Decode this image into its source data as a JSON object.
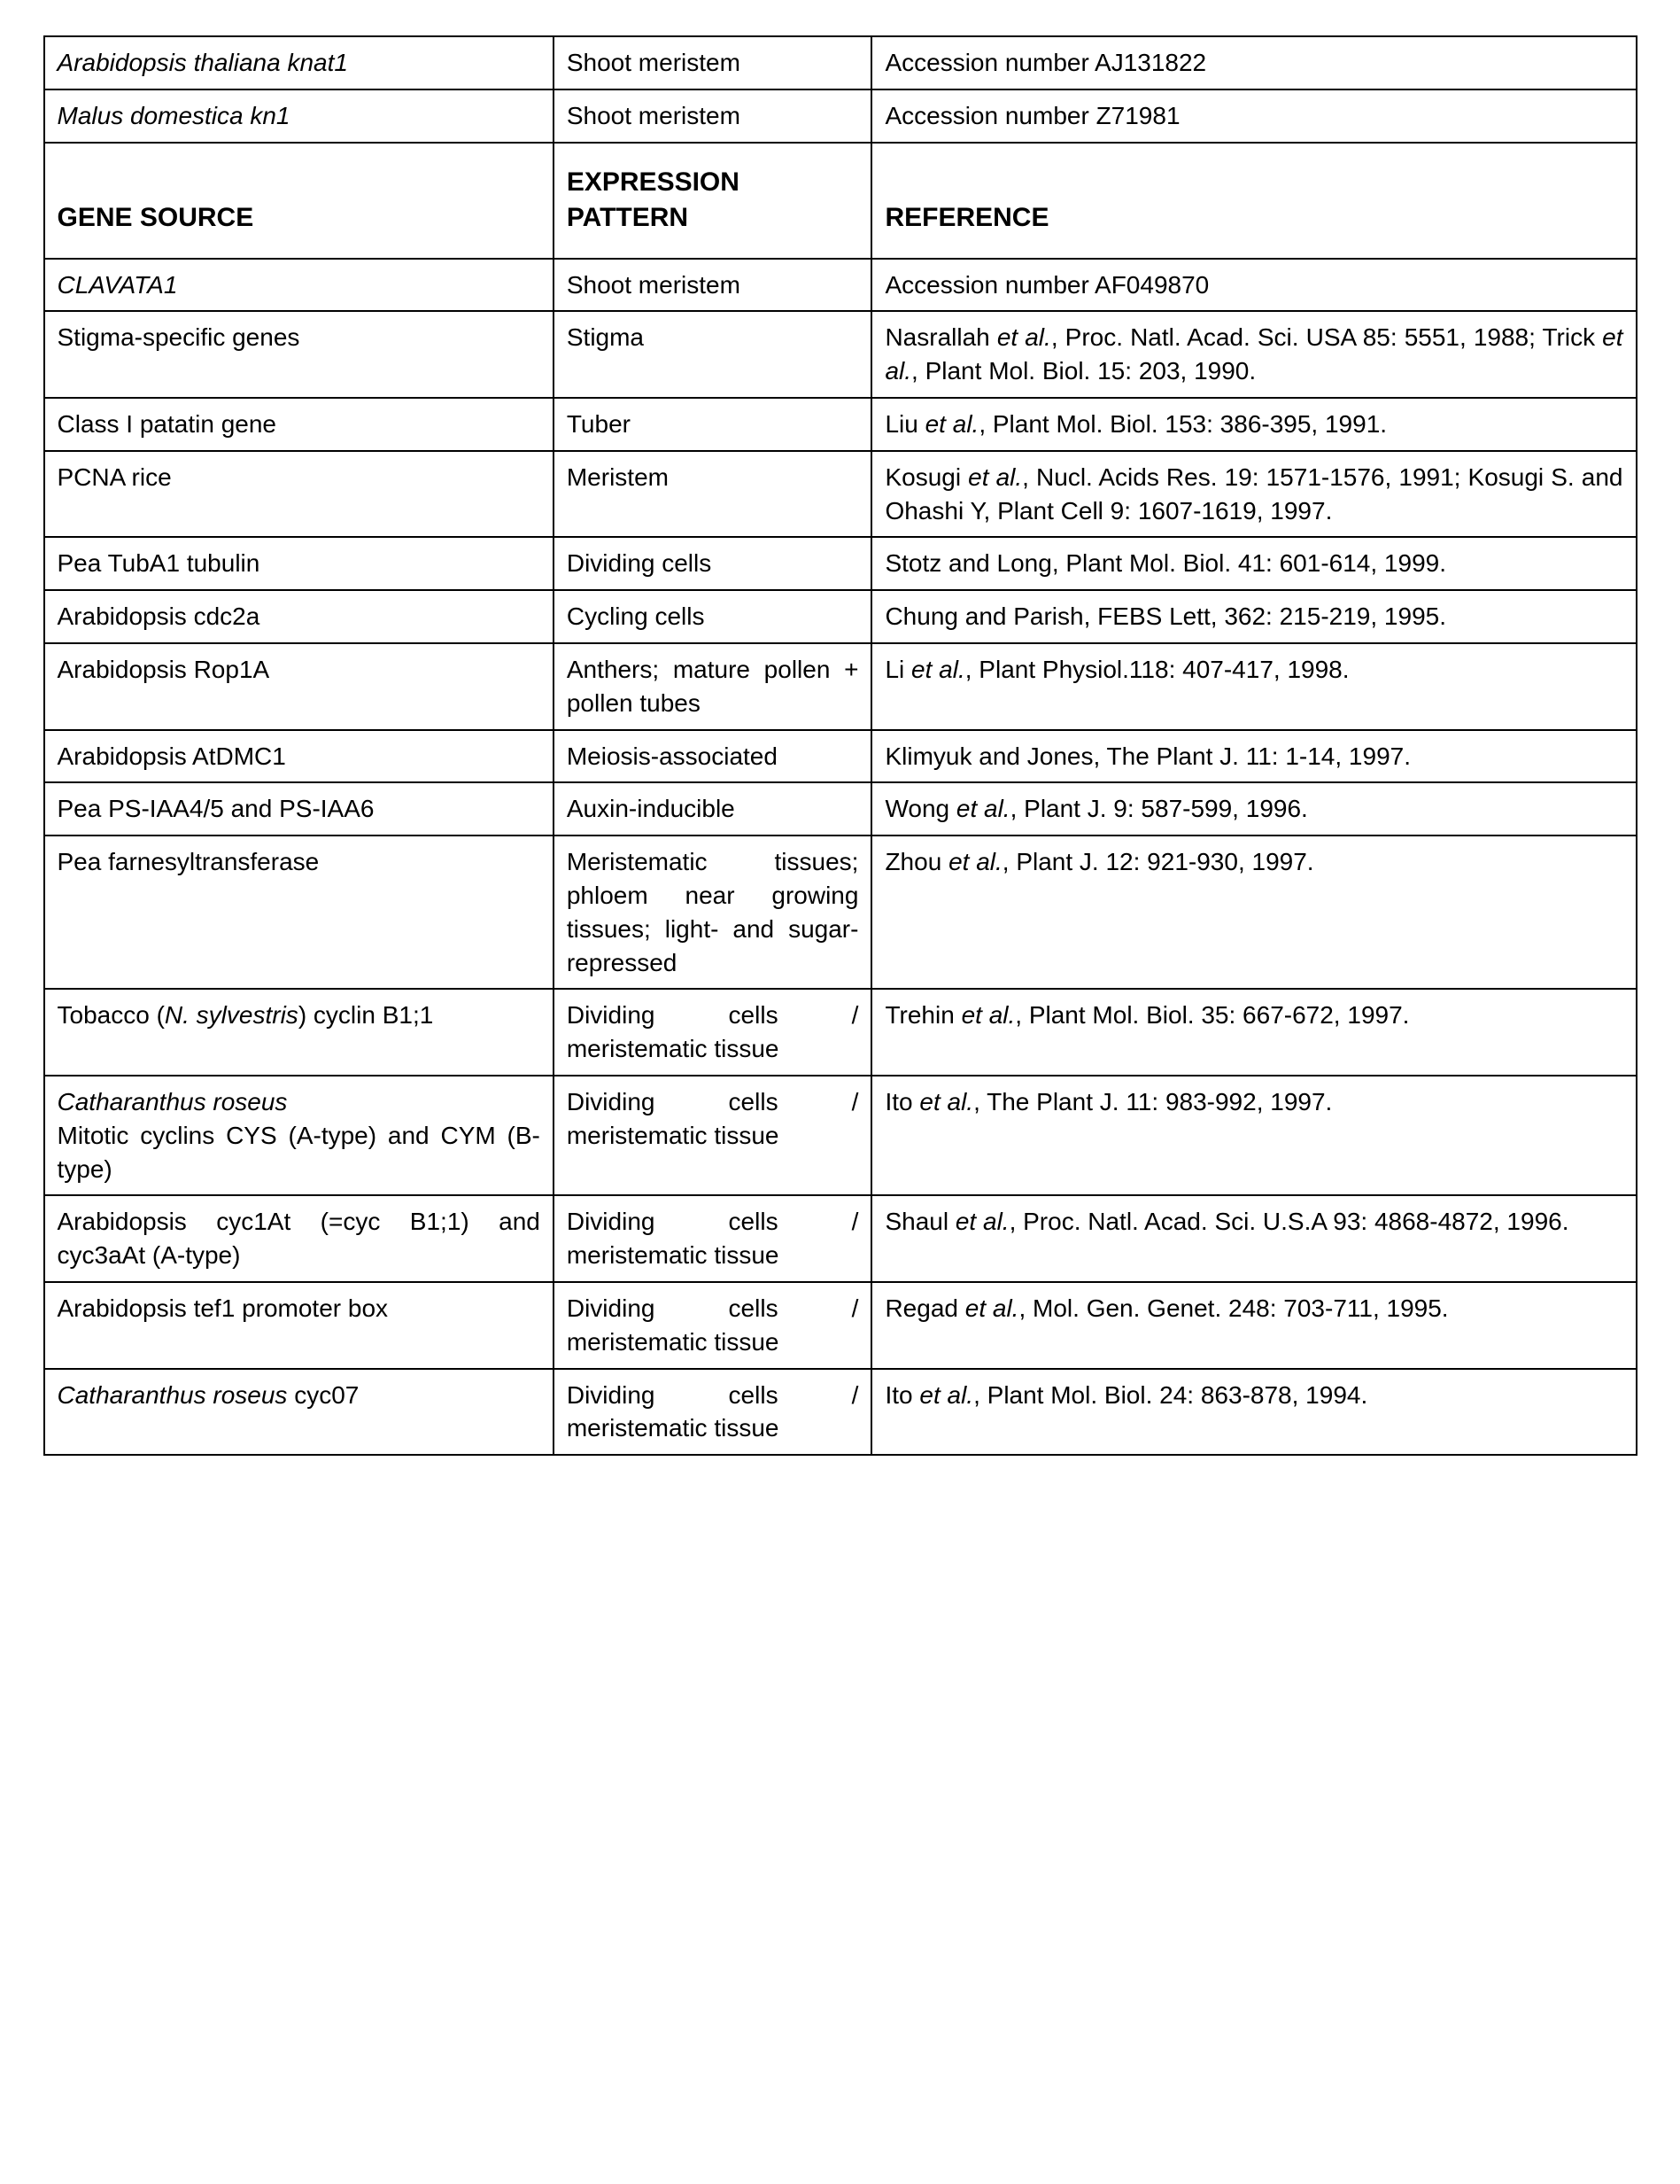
{
  "table": {
    "columns": [
      "GENE SOURCE",
      "EXPRESSION PATTERN",
      "REFERENCE"
    ],
    "col_widths_pct": [
      32,
      20,
      48
    ],
    "border_color": "#000000",
    "background_color": "#ffffff",
    "font_family": "Arial, Helvetica, sans-serif",
    "body_font_size_pt": 21,
    "header_font_size_pt": 23,
    "rows": [
      {
        "gene_html": "<em>Arabidopsis thaliana knat1</em>",
        "expression": "Shoot meristem",
        "reference_html": "Accession number AJ131822",
        "justify_ref": false
      },
      {
        "gene_html": "<em>Malus domestica kn1</em>",
        "expression": "Shoot meristem",
        "reference_html": "Accession number Z71981",
        "justify_ref": false
      },
      {
        "is_header": true,
        "gene": "GENE SOURCE",
        "expression": "EXPRESSION PATTERN",
        "reference": "REFERENCE"
      },
      {
        "gene_html": "<em>CLAVATA1</em>",
        "expression": "Shoot meristem",
        "reference_html": "Accession number AF049870",
        "justify_ref": false
      },
      {
        "gene_html": "Stigma-specific genes",
        "expression": "Stigma",
        "reference_html": "Nasrallah <em>et al.</em>, Proc. Natl. Acad. Sci. USA 85: 5551, 1988; Trick <em>et al.</em>, Plant Mol. Biol. 15: 203, 1990.",
        "justify_ref": true
      },
      {
        "gene_html": "Class I patatin gene",
        "expression": "Tuber",
        "reference_html": "Liu <em>et al.</em>, Plant Mol. Biol. 153: 386-395, 1991.",
        "justify_ref": true
      },
      {
        "gene_html": "PCNA rice",
        "expression": "Meristem",
        "reference_html": "Kosugi <em>et al.</em>, Nucl. Acids Res. 19: 1571-1576, 1991; Kosugi S. and Ohashi Y, Plant Cell 9: 1607-1619, 1997.",
        "justify_ref": true
      },
      {
        "gene_html": "Pea TubA1 tubulin",
        "expression": "Dividing cells",
        "reference_html": "Stotz and Long, Plant Mol. Biol. 41: 601-614, 1999.",
        "justify_ref": true
      },
      {
        "gene_html": "Arabidopsis cdc2a",
        "expression": "Cycling cells",
        "reference_html": "Chung and Parish, FEBS Lett, 362: 215-219, 1995.",
        "justify_ref": true
      },
      {
        "gene_html": "Arabidopsis Rop1A",
        "expression_html": "Anthers; mature pollen + pollen tubes",
        "justify_expr": true,
        "reference_html": "Li <em>et al.</em>, Plant Physiol.118: 407-417, 1998.",
        "justify_ref": true
      },
      {
        "gene_html": "Arabidopsis AtDMC1",
        "expression_html": "Meiosis-associated",
        "reference_html": "Klimyuk and Jones, The Plant J. 11: 1-14, 1997.",
        "justify_ref": true
      },
      {
        "gene_html": "Pea PS-IAA4/5 and PS-IAA6",
        "expression": "Auxin-inducible",
        "reference_html": "Wong <em>et al.</em>, Plant J. 9: 587-599, 1996.",
        "justify_ref": false
      },
      {
        "gene_html": "Pea farnesyltransferase",
        "expression_html": "Meristematic tissues; phloem near growing tissues; light- and sugar-repressed",
        "justify_expr": true,
        "reference_html": "Zhou <em>et al.</em>, Plant J. 12: 921-930, 1997.",
        "justify_ref": false
      },
      {
        "gene_html": "Tobacco (<em>N. sylvestris</em>) cyclin B1;1",
        "justify_gene": true,
        "expression_html": "Dividing cells / meristematic tissue",
        "justify_expr": true,
        "reference_html": "Trehin <em>et al.</em>, Plant Mol. Biol. 35: 667-672, 1997.",
        "justify_ref": true
      },
      {
        "gene_html": "<em>Catharanthus roseus</em><br>Mitotic cyclins CYS (A-type) and CYM (B-type)",
        "justify_gene": true,
        "expression_html": "Dividing cells / meristematic tissue",
        "justify_expr": true,
        "reference_html": "Ito <em>et al.</em>, The Plant J. 11: 983-992, 1997.",
        "justify_ref": false
      },
      {
        "gene_html": "Arabidopsis cyc1At (=cyc B1;1) and cyc3aAt (A-type)",
        "justify_gene": true,
        "expression_html": "Dividing cells / meristematic tissue",
        "justify_expr": true,
        "reference_html": "Shaul <em>et al.</em>, Proc. Natl. Acad. Sci. U.S.A 93: 4868-4872, 1996.",
        "justify_ref": true
      },
      {
        "gene_html": "Arabidopsis tef1 promoter box",
        "expression_html": "Dividing cells / meristematic tissue",
        "justify_expr": true,
        "reference_html": "Regad <em>et al.</em>, Mol. Gen. Genet. 248: 703-711, 1995.",
        "justify_ref": true
      },
      {
        "gene_html": "<em>Catharanthus roseus</em> cyc07",
        "expression_html": "Dividing cells / meristematic tissue",
        "justify_expr": true,
        "reference_html": "Ito <em>et al.</em>, Plant Mol. Biol. 24: 863-878, 1994.",
        "justify_ref": true
      }
    ]
  }
}
